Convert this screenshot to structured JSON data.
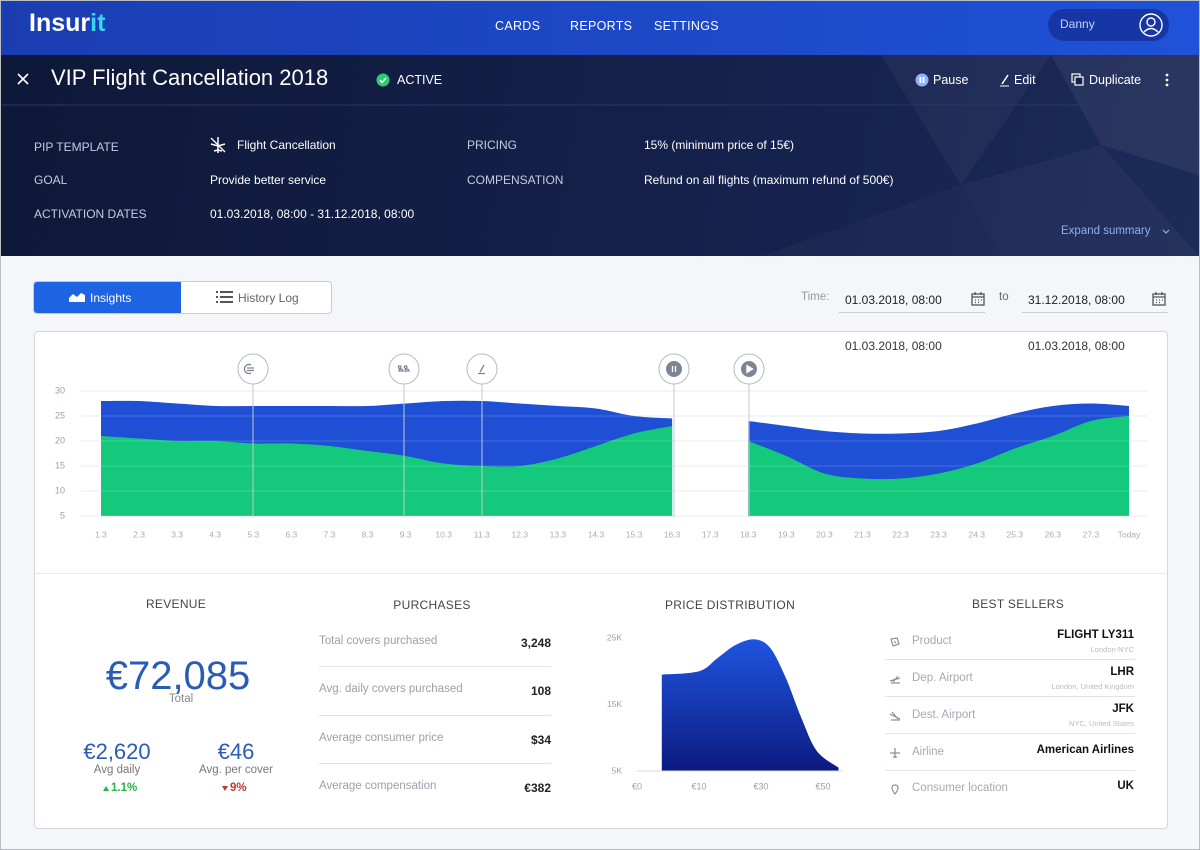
{
  "header": {
    "logo": [
      "Insur",
      "it"
    ],
    "nav": [
      "CARDS",
      "REPORTS",
      "SETTINGS"
    ],
    "user": "Danny"
  },
  "card": {
    "title": "VIP Flight Cancellation 2018",
    "status": "ACTIVE",
    "actions": [
      "Pause",
      "Edit",
      "Duplicate"
    ],
    "summary": [
      {
        "label": "PIP TEMPLATE",
        "value": "Flight Cancellation"
      },
      {
        "label": "GOAL",
        "value": "Provide better service"
      },
      {
        "label": "ACTIVATION DATES",
        "value": "01.03.2018, 08:00 - 31.12.2018, 08:00"
      },
      {
        "label": "PRICING",
        "value": "15% (minimum price of 15€)"
      },
      {
        "label": "COMPENSATION",
        "value": "Refund on all flights (maximum refund of 500€)"
      }
    ],
    "expand": "Expand summary"
  },
  "tabs": [
    "Insights",
    "History Log"
  ],
  "time": {
    "label": "Time:",
    "from": "01.03.2018,  08:00",
    "to_label": "to",
    "to": "31.12.2018,  08:00"
  },
  "timeline": {
    "type": "area",
    "date_labels": [
      "01.03.2018,  08:00",
      "01.03.2018,  08:00"
    ],
    "categories": [
      "1.3",
      "2.3",
      "3.3",
      "4.3",
      "5.3",
      "6.3",
      "7.3",
      "8.3",
      "9.3",
      "10.3",
      "11.3",
      "12.3",
      "13.3",
      "14.3",
      "15.3",
      "16.3",
      "17.3",
      "18.3",
      "19.3",
      "20.3",
      "21.3",
      "22.3",
      "23.3",
      "24.3",
      "25.3",
      "26.3",
      "27.3",
      "Today"
    ],
    "series": [
      {
        "color": "#1e4fd4",
        "values": [
          28,
          28,
          27.5,
          27,
          27,
          27,
          27,
          27,
          27.5,
          28,
          28,
          27.5,
          27,
          26.5,
          25,
          24.5,
          null,
          24,
          23,
          22,
          21.5,
          21.5,
          22,
          23.5,
          25.5,
          27,
          27.5,
          27
        ]
      },
      {
        "color": "#14c97c",
        "values": [
          21,
          20.5,
          20,
          20,
          19.5,
          19.5,
          19,
          18,
          17,
          15.5,
          15,
          15,
          16.5,
          19,
          21.5,
          23,
          null,
          20,
          17,
          13.5,
          12.5,
          12.5,
          13.5,
          15.5,
          18.5,
          21,
          24,
          25
        ]
      }
    ],
    "ylim": [
      5,
      30
    ],
    "yticks": [
      5,
      10,
      15,
      20,
      25,
      30
    ],
    "grid": true
  },
  "revenue": {
    "title": "REVENUE",
    "total": "€72,085",
    "total_label": "Total",
    "stats": [
      {
        "value": "€2,620",
        "label": "Avg daily",
        "change": "1.1%",
        "direction": "up"
      },
      {
        "value": "€46",
        "label": "Avg. per cover",
        "change": "9%",
        "direction": "down"
      }
    ]
  },
  "purchases": {
    "title": "PURCHASES",
    "rows": [
      {
        "label": "Total covers purchased",
        "value": "3,248"
      },
      {
        "label": "Avg. daily covers purchased",
        "value": "108"
      },
      {
        "label": "Average consumer price",
        "value": "$34"
      },
      {
        "label": "Average compensation",
        "value": "€382"
      }
    ]
  },
  "price_distribution": {
    "type": "area",
    "title": "PRICE DISTRIBUTION",
    "x": [
      4,
      10,
      16,
      22,
      28,
      33,
      38,
      43,
      48,
      55
    ],
    "values": [
      19500,
      20000,
      22000,
      24000,
      24800,
      23500,
      19000,
      13000,
      8000,
      5500
    ],
    "color": "#1f55e0",
    "xticks": [
      {
        "value": 0,
        "label": "€0"
      },
      {
        "value": 10,
        "label": "€10"
      },
      {
        "value": 30,
        "label": "€30"
      },
      {
        "value": 50,
        "label": "€50"
      }
    ],
    "ylim": [
      5000,
      25000
    ],
    "yticks": [
      {
        "value": 5000,
        "label": "5K"
      },
      {
        "value": 15000,
        "label": "15K"
      },
      {
        "value": 25000,
        "label": "25K"
      }
    ]
  },
  "best_sellers": {
    "title": "BEST SELLERS",
    "rows": [
      {
        "label": "Product",
        "value": "FLIGHT LY311",
        "sub": "London-NYC"
      },
      {
        "label": "Dep. Airport",
        "value": "LHR",
        "sub": "London, United Kingdom"
      },
      {
        "label": "Dest. Airport",
        "value": "JFK",
        "sub": "NYC, United States"
      },
      {
        "label": "Airline",
        "value": "American Airlines"
      },
      {
        "label": "Consumer location",
        "value": "UK"
      }
    ]
  }
}
